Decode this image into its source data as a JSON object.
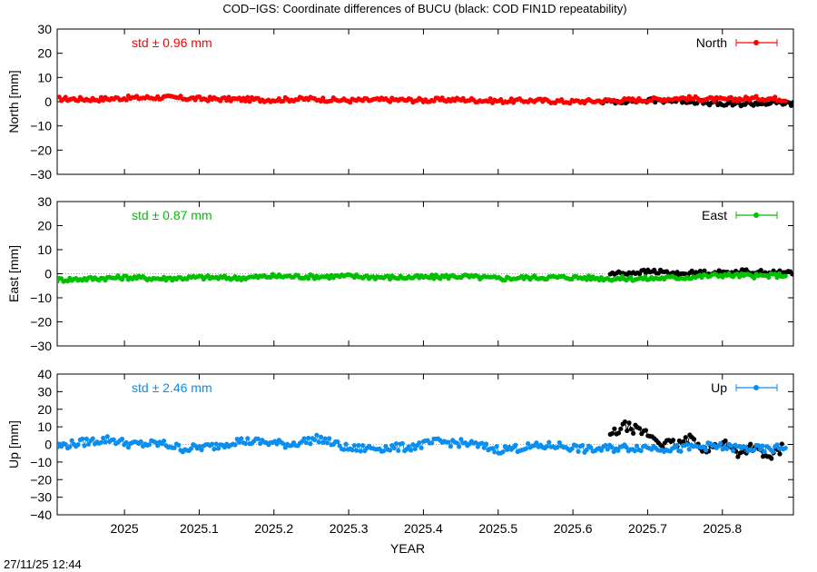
{
  "title": "COD−IGS: Coordinate differences of BUCU (black: COD FIN1D repeatability)",
  "xlabel": "YEAR",
  "timestamp": "27/11/25 12:44",
  "x_ticks": [
    "2025",
    "2025.1",
    "2025.2",
    "2025.3",
    "2025.4",
    "2025.5",
    "2025.6",
    "2025.7",
    "2025.8"
  ],
  "colors": {
    "north": "#ff0000",
    "east": "#00c000",
    "up": "#0a8ef0",
    "repeatability": "#000000",
    "zero_line": "#a0a0a0"
  },
  "chart_data": [
    {
      "type": "scatter",
      "component": "north",
      "ylabel": "North [mm]",
      "legend": "North",
      "std_label": "std ± 0.96 mm",
      "xlim": [
        2024.91,
        2025.895
      ],
      "ylim": [
        -30,
        30
      ],
      "yticks": [
        "30",
        "20",
        "10",
        "0",
        "−10",
        "−20",
        "−30"
      ],
      "series": [
        {
          "color": "#ff0000",
          "x": [
            2024.91,
            2024.96,
            2025.0,
            2025.05,
            2025.1,
            2025.15,
            2025.2,
            2025.25,
            2025.3,
            2025.35,
            2025.4,
            2025.45,
            2025.5,
            2025.55,
            2025.6,
            2025.65,
            2025.7,
            2025.75,
            2025.8,
            2025.85,
            2025.885
          ],
          "y": [
            1.2,
            1.0,
            1.5,
            1.8,
            1.2,
            1.0,
            0.8,
            1.2,
            0.5,
            0.8,
            0.6,
            0.9,
            0.3,
            0.5,
            0.0,
            0.5,
            0.8,
            1.5,
            0.8,
            1.5,
            1.0
          ]
        },
        {
          "color": "#000000",
          "x": [
            2025.64,
            2025.68,
            2025.72,
            2025.76,
            2025.8,
            2025.84,
            2025.88,
            2025.895
          ],
          "y": [
            0.0,
            0.3,
            0.5,
            0.2,
            -1.2,
            -0.8,
            -0.5,
            -1.0
          ]
        }
      ]
    },
    {
      "type": "scatter",
      "component": "east",
      "ylabel": "East [mm]",
      "legend": "East",
      "std_label": "std ± 0.87 mm",
      "xlim": [
        2024.91,
        2025.895
      ],
      "ylim": [
        -30,
        30
      ],
      "yticks": [
        "30",
        "20",
        "10",
        "0",
        "−10",
        "−20",
        "−30"
      ],
      "series": [
        {
          "color": "#00c000",
          "x": [
            2024.91,
            2024.96,
            2025.0,
            2025.05,
            2025.1,
            2025.15,
            2025.2,
            2025.25,
            2025.3,
            2025.35,
            2025.4,
            2025.45,
            2025.5,
            2025.55,
            2025.6,
            2025.65,
            2025.7,
            2025.75,
            2025.8,
            2025.85,
            2025.885
          ],
          "y": [
            -2.5,
            -2.0,
            -1.5,
            -2.0,
            -1.5,
            -1.8,
            -1.0,
            -1.2,
            -1.0,
            -1.5,
            -1.5,
            -1.0,
            -2.0,
            -1.5,
            -1.5,
            -2.0,
            -2.0,
            -1.5,
            -0.5,
            -1.0,
            -0.5
          ]
        },
        {
          "color": "#000000",
          "x": [
            2025.65,
            2025.68,
            2025.71,
            2025.74,
            2025.77,
            2025.8,
            2025.83,
            2025.86,
            2025.895
          ],
          "y": [
            0.0,
            0.5,
            1.0,
            0.0,
            0.5,
            0.5,
            1.0,
            0.5,
            0.5
          ]
        }
      ]
    },
    {
      "type": "scatter",
      "component": "up",
      "ylabel": "Up [mm]",
      "legend": "Up",
      "std_label": "std ± 2.46 mm",
      "xlim": [
        2024.91,
        2025.895
      ],
      "ylim": [
        -40,
        40
      ],
      "yticks": [
        "40",
        "30",
        "20",
        "10",
        "0",
        "−10",
        "−20",
        "−30",
        "−40"
      ],
      "series": [
        {
          "color": "#0a8ef0",
          "x": [
            2024.91,
            2024.95,
            2024.98,
            2025.01,
            2025.05,
            2025.08,
            2025.12,
            2025.15,
            2025.18,
            2025.22,
            2025.26,
            2025.3,
            2025.34,
            2025.38,
            2025.42,
            2025.46,
            2025.5,
            2025.54,
            2025.58,
            2025.62,
            2025.66,
            2025.7,
            2025.74,
            2025.78,
            2025.82,
            2025.86,
            2025.885
          ],
          "y": [
            -1.0,
            1.5,
            3.0,
            0.0,
            0.5,
            -2.5,
            -1.0,
            2.0,
            1.5,
            0.0,
            3.5,
            -2.5,
            -2.0,
            -1.5,
            1.5,
            0.5,
            -3.0,
            -1.5,
            -0.5,
            -3.0,
            -2.0,
            -1.5,
            -2.5,
            -1.0,
            -2.0,
            -3.0,
            -1.5
          ]
        },
        {
          "color": "#000000",
          "x": [
            2025.65,
            2025.67,
            2025.7,
            2025.72,
            2025.74,
            2025.76,
            2025.78,
            2025.8,
            2025.82,
            2025.84,
            2025.86,
            2025.88
          ],
          "y": [
            5.0,
            10.5,
            6.0,
            0.5,
            0.0,
            3.5,
            -4.0,
            2.0,
            -5.0,
            -1.0,
            -8.0,
            -2.0
          ]
        }
      ]
    }
  ]
}
